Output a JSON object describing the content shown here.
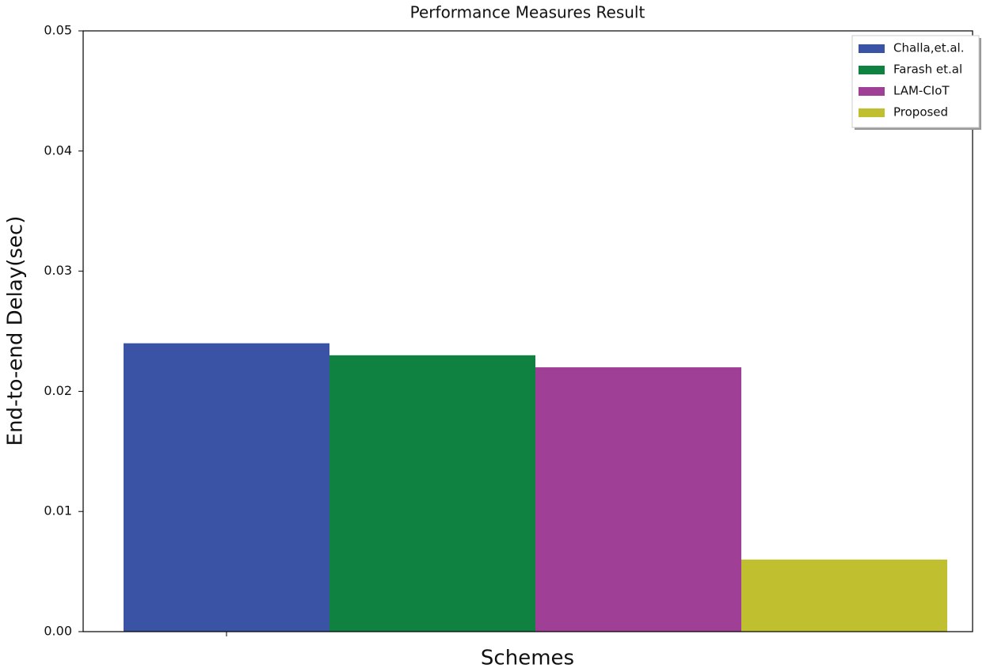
{
  "chart_data": {
    "type": "bar",
    "title": "Performance Measures Result",
    "x_label": "Schemes",
    "y_label": "End-to-end Delay(sec)",
    "categories": [
      null
    ],
    "series": [
      {
        "name": "Challa,et.al.",
        "color": "#3a53a4",
        "values": [
          0.024
        ]
      },
      {
        "name": "Farash et.al",
        "color": "#0f8140",
        "values": [
          0.023
        ]
      },
      {
        "name": "LAM-CIoT",
        "color": "#a03f96",
        "values": [
          0.022
        ]
      },
      {
        "name": "Proposed",
        "color": "#bfbf30",
        "values": [
          0.006
        ]
      }
    ],
    "ylim": [
      0,
      0.05
    ],
    "yticks": [
      {
        "value": 0,
        "label": "0.00"
      },
      0.01,
      0.02,
      0.03,
      0.04,
      0.05
    ],
    "legend": "upper-right"
  }
}
